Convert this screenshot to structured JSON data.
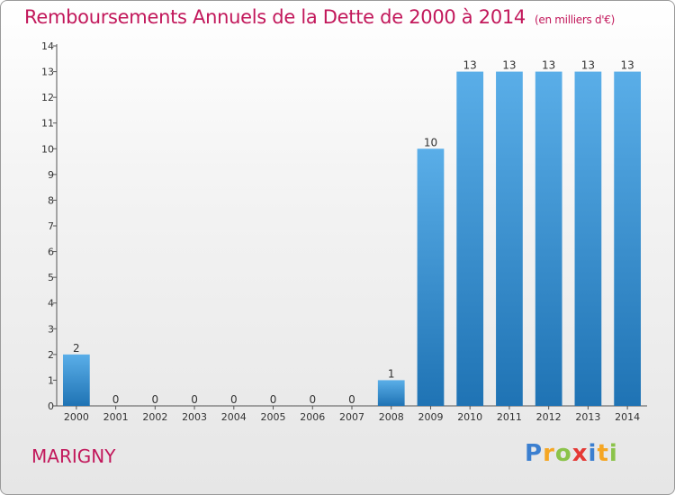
{
  "header": {
    "title": "Remboursements Annuels de la Dette de 2000 à 2014",
    "unit": "(en milliers d'€)"
  },
  "footer": {
    "town": "MARIGNY",
    "logo": "Proxiti"
  },
  "colors": {
    "title": "#c2185b",
    "bar_top": "#5aaee8",
    "bar_bottom": "#1f73b4"
  },
  "chart_data": {
    "type": "bar",
    "title": "Remboursements Annuels de la Dette de 2000 à 2014",
    "xlabel": "",
    "ylabel": "",
    "categories": [
      "2000",
      "2001",
      "2002",
      "2003",
      "2004",
      "2005",
      "2006",
      "2007",
      "2008",
      "2009",
      "2010",
      "2011",
      "2012",
      "2013",
      "2014"
    ],
    "values": [
      2,
      0,
      0,
      0,
      0,
      0,
      0,
      0,
      1,
      10,
      13,
      13,
      13,
      13,
      13
    ],
    "value_labels": [
      "2",
      "0",
      "0",
      "0",
      "0",
      "0",
      "0",
      "0",
      "1",
      "10",
      "13",
      "13",
      "13",
      "13",
      "13"
    ],
    "ylim": [
      0,
      14
    ],
    "yticks": [
      "0",
      "1",
      "2",
      "3",
      "4",
      "5",
      "6",
      "7",
      "8",
      "9",
      "10",
      "11",
      "12",
      "13",
      "14"
    ],
    "grid": false,
    "legend": "none"
  }
}
